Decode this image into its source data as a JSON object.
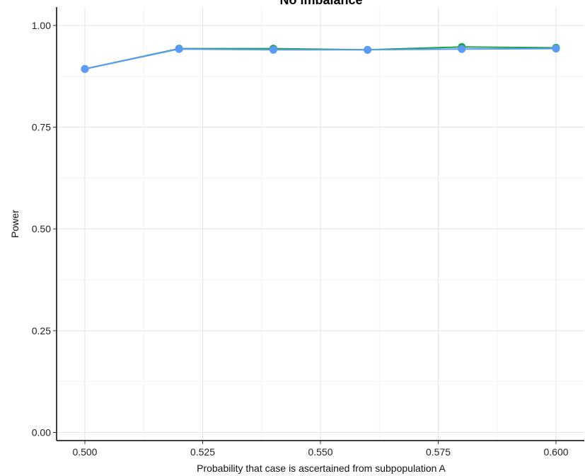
{
  "chart_data": {
    "type": "line",
    "title": "No imbalance",
    "xlabel": "Probability that case is ascertained from subpopulation A",
    "ylabel": "Power",
    "xlim": [
      0.494,
      0.606
    ],
    "ylim": [
      -0.02,
      1.045
    ],
    "x_ticks": [
      "0.500",
      "0.525",
      "0.550",
      "0.575",
      "0.600"
    ],
    "y_ticks": [
      "0.00",
      "0.25",
      "0.50",
      "0.75",
      "1.00"
    ],
    "grid": true,
    "x": [
      0.5,
      0.52,
      0.54,
      0.56,
      0.58,
      0.6
    ],
    "series": [
      {
        "color": "#1fa14a",
        "values": [
          0.893,
          0.943,
          0.943,
          0.94,
          0.947,
          0.945
        ]
      },
      {
        "color": "#5b9bf5",
        "values": [
          0.893,
          0.942,
          0.94,
          0.94,
          0.942,
          0.943
        ]
      }
    ]
  }
}
